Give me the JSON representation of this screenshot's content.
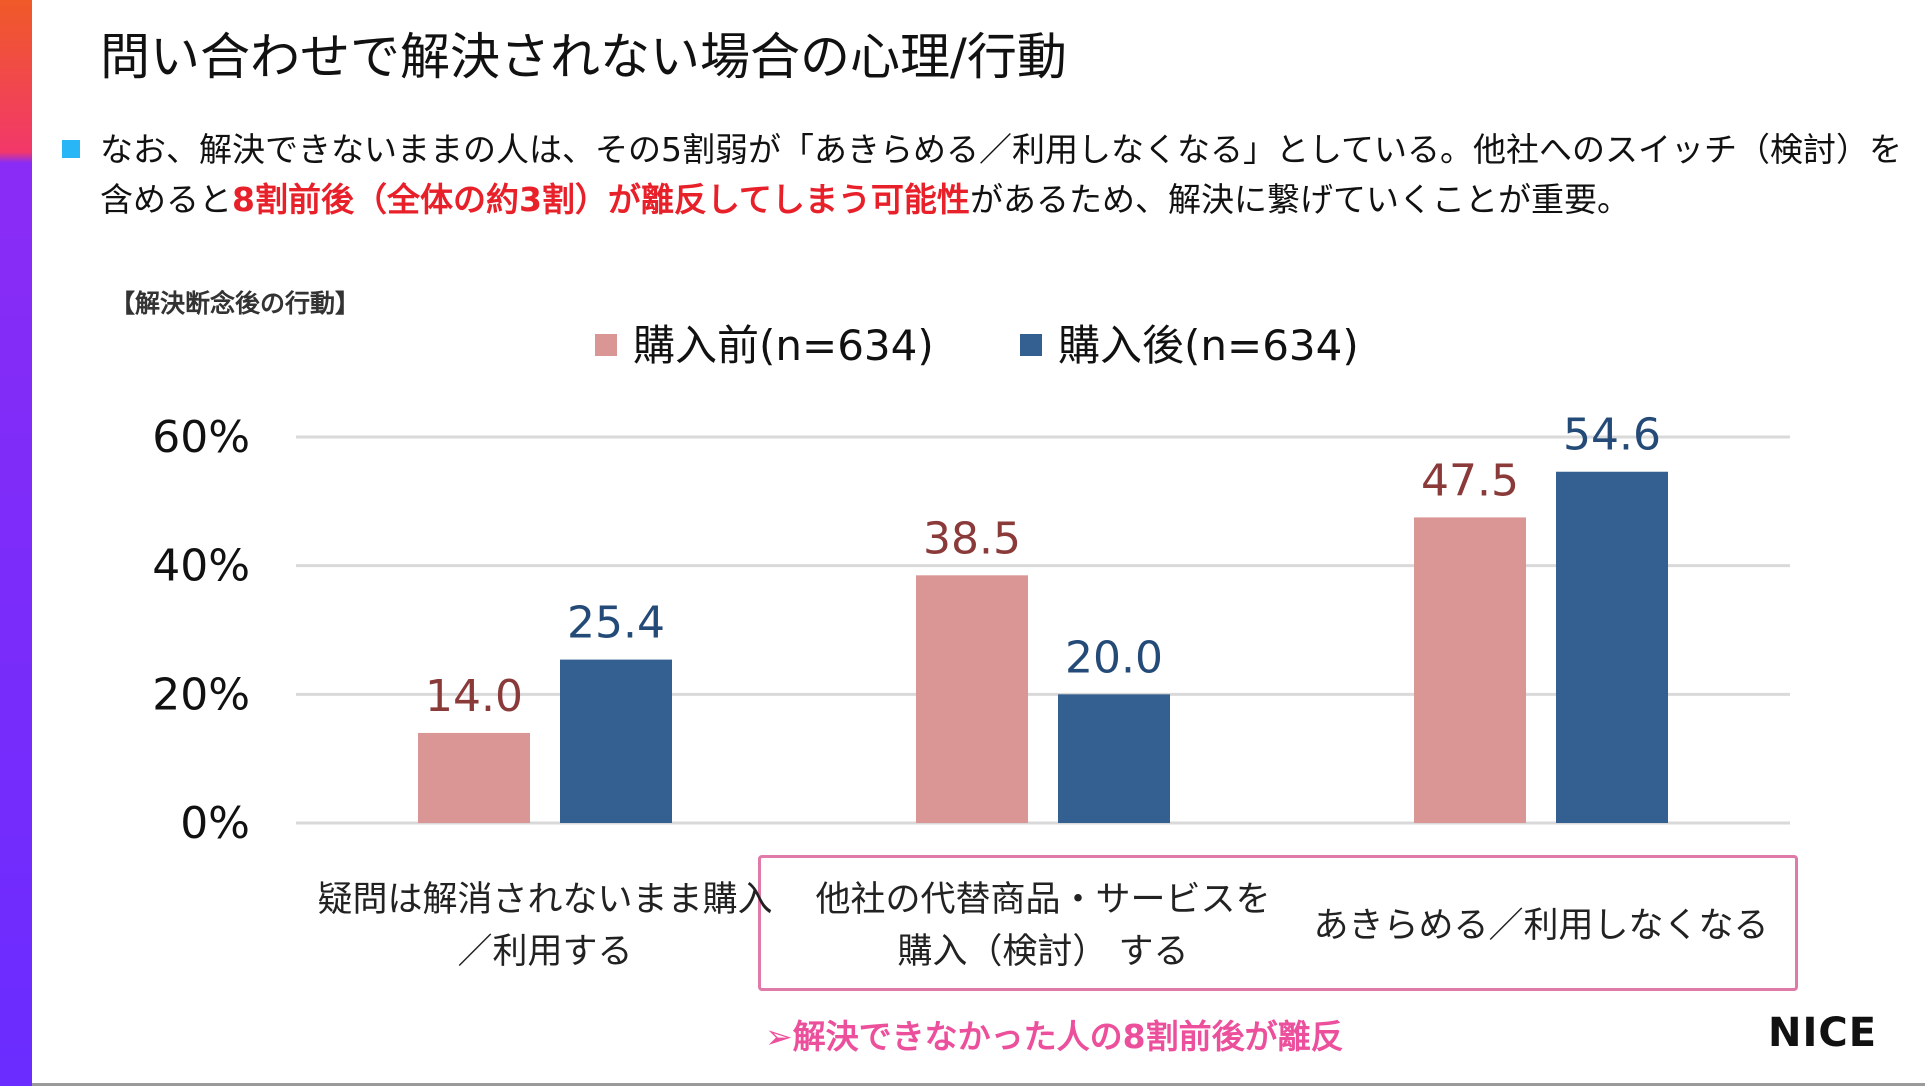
{
  "header": {
    "title": "問い合わせで解決されない場合の心理/行動"
  },
  "bullet": {
    "part1": "なお、解決できないままの人は、その5割弱が「あきらめる／利用しなくなる」としている。他社へのスイッチ（検討）を含めると",
    "emphasis": "8割前後（全体の約3割）が離反してしまう可能性",
    "part2": "があるため、解決に繋げていくことが重要。"
  },
  "chart_subtitle": "【解決断念後の行動】",
  "legend": {
    "before": "購入前(n=634)",
    "after": "購入後(n=634)"
  },
  "colors": {
    "before": "#d99694",
    "after": "#335f91",
    "before_label": "#8b3a3a",
    "after_label": "#244a78",
    "gridline": "#d9d9d9",
    "highlight_border": "#e07aa8",
    "conclusion": "#ec4f9c",
    "bullet_marker": "#29b6f6",
    "emphasis_text": "#e8202a"
  },
  "chart_data": {
    "type": "bar",
    "categories": [
      "疑問は解消されないまま購入／利用する",
      "他社の代替商品・サービスを購入（検討） する",
      "あきらめる／利用しなくなる"
    ],
    "category_lines": [
      [
        "疑問は解消されないまま購入",
        "／利用する"
      ],
      [
        "他社の代替商品・サービスを",
        "購入（検討） する"
      ],
      [
        "あきらめる／利用しなくなる"
      ]
    ],
    "series": [
      {
        "name": "購入前(n=634)",
        "values": [
          14.0,
          38.5,
          47.5
        ],
        "labels": [
          "14.0",
          "38.5",
          "47.5"
        ]
      },
      {
        "name": "購入後(n=634)",
        "values": [
          25.4,
          20.0,
          54.6
        ],
        "labels": [
          "25.4",
          "20.0",
          "54.6"
        ]
      }
    ],
    "ylim": [
      0,
      60
    ],
    "yticks": [
      0,
      20,
      40,
      60
    ],
    "ytick_labels": [
      "0%",
      "20%",
      "40%",
      "60%"
    ],
    "grid": true,
    "legend_position": "top-center",
    "xlabel": "",
    "ylabel": ""
  },
  "conclusion": "➢解決できなかった人の8割前後が離反",
  "logo": "NICE"
}
